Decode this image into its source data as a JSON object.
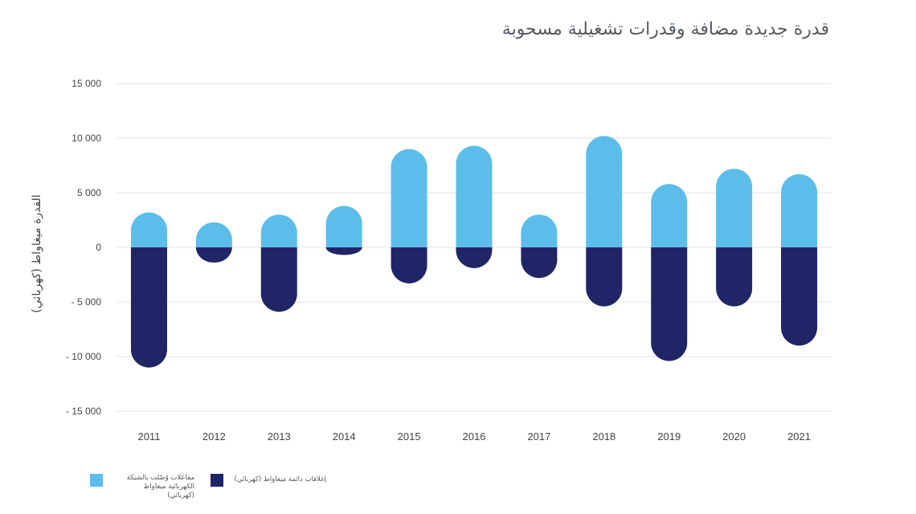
{
  "chart_data": {
    "type": "bar",
    "title": "قدرة جديدة مضافة وقدرات تشغيلية مسحوبة",
    "ylabel": "القدرة ميغاواط (كهربائي)",
    "xlabel": "",
    "categories": [
      "2011",
      "2012",
      "2013",
      "2014",
      "2015",
      "2016",
      "2017",
      "2018",
      "2019",
      "2020",
      "2021"
    ],
    "series": [
      {
        "name": "مفاعلات وُصّلت بالشبكة الكهربائية ميغاواط (كهربائي)",
        "color": "#5dbdea",
        "values": [
          3200,
          2300,
          3000,
          3800,
          9000,
          9300,
          3000,
          10200,
          5800,
          7200,
          6700
        ]
      },
      {
        "name": "إغلاقات دائمة ميغاواط (كهربائي)",
        "color": "#1f2566",
        "values": [
          -11000,
          -1400,
          -5900,
          -700,
          -3300,
          -1900,
          -2800,
          -5400,
          -10400,
          -5400,
          -9000
        ]
      }
    ],
    "ylim": [
      -15000,
      15000
    ],
    "yticks": [
      15000,
      10000,
      5000,
      0,
      -5000,
      -10000,
      -15000
    ],
    "ytick_labels": [
      "15 000",
      "10 000",
      "5 000",
      "0",
      "- 5 000",
      "- 10 000",
      "- 15 000"
    ],
    "grid": true,
    "legend_position": "bottom-left"
  }
}
